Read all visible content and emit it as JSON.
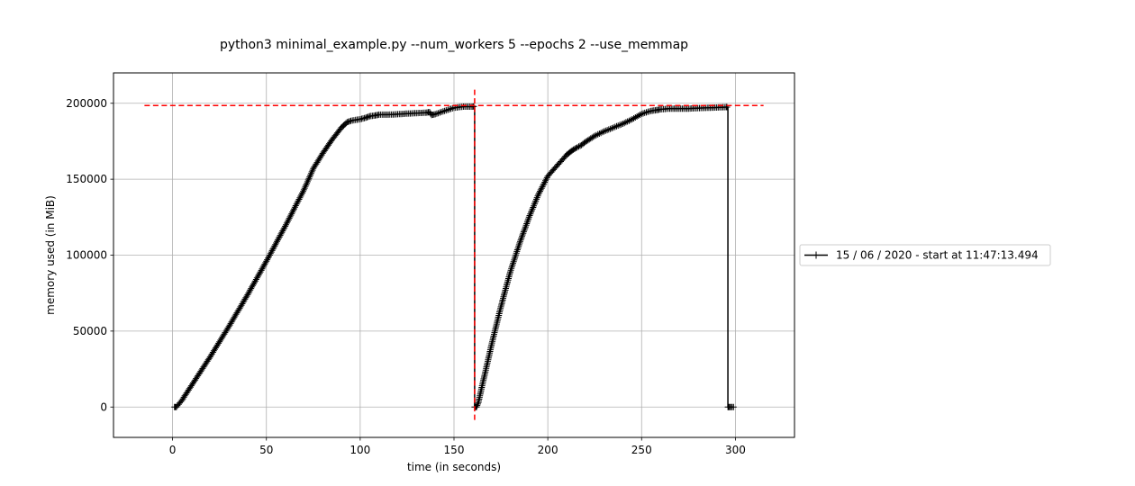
{
  "chart_data": {
    "type": "line",
    "title": "python3 minimal_example.py --num_workers 5 --epochs 2 --use_memmap",
    "xlabel": "time (in seconds)",
    "ylabel": "memory used (in MiB)",
    "xlim": [
      -31.5,
      331.5
    ],
    "ylim": [
      -20000,
      220000
    ],
    "xticks": [
      0,
      50,
      100,
      150,
      200,
      250,
      300
    ],
    "yticks": [
      0,
      50000,
      100000,
      150000,
      200000
    ],
    "grid": true,
    "legend_position": "center right, outside plot",
    "series": [
      {
        "name": "15 / 06 / 2020 - start at 11:47:13.494",
        "color": "#000000",
        "marker": "plus",
        "x": [
          1,
          2,
          5,
          10,
          20,
          30,
          40,
          50,
          60,
          70,
          75,
          80,
          85,
          90,
          93,
          95,
          100,
          103,
          105,
          108,
          110,
          115,
          120,
          125,
          130,
          135,
          137,
          138,
          140,
          145,
          150,
          155,
          160,
          161,
          161,
          162,
          163,
          165,
          168,
          170,
          175,
          180,
          185,
          190,
          195,
          200,
          205,
          210,
          213,
          215,
          218,
          220,
          225,
          230,
          235,
          240,
          245,
          250,
          255,
          258,
          260,
          265,
          270,
          275,
          280,
          285,
          290,
          295,
          296,
          296,
          297,
          299
        ],
        "y": [
          0,
          0,
          4500,
          14000,
          33000,
          53000,
          74000,
          96000,
          119000,
          143000,
          157000,
          167000,
          176000,
          184000,
          187500,
          188500,
          189500,
          190500,
          191500,
          192000,
          192500,
          192500,
          192800,
          193200,
          193500,
          193800,
          194200,
          192300,
          192800,
          195000,
          197000,
          197800,
          197800,
          198000,
          0,
          0,
          3000,
          14000,
          30000,
          41000,
          66000,
          89000,
          108000,
          125000,
          140000,
          152000,
          159000,
          166000,
          169000,
          170500,
          172500,
          174500,
          178500,
          181500,
          184000,
          186500,
          189500,
          193000,
          195000,
          195500,
          196000,
          196500,
          196500,
          196500,
          196800,
          197000,
          197200,
          197500,
          197500,
          0,
          0,
          0
        ]
      }
    ],
    "reference_lines": [
      {
        "orientation": "horizontal",
        "y": 198500,
        "x_range": [
          -15,
          315
        ],
        "color": "#ff0000",
        "style": "dashed"
      },
      {
        "orientation": "vertical",
        "x": 161,
        "y_range": [
          -9000,
          209000
        ],
        "color": "#ff0000",
        "style": "dashed"
      }
    ]
  }
}
